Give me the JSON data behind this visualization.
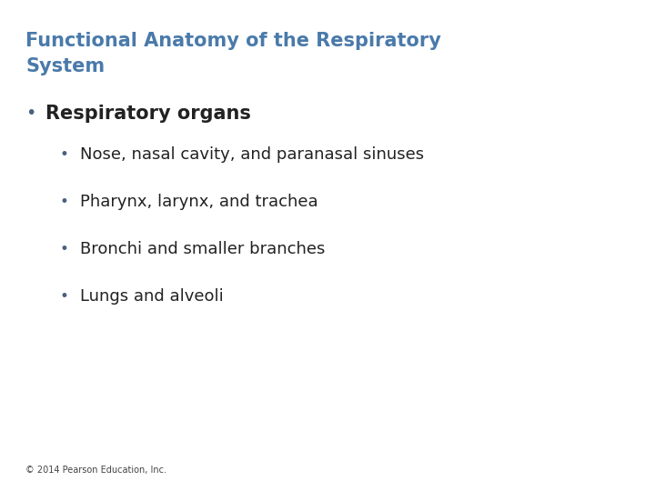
{
  "background_color": "#ffffff",
  "title_line1": "Functional Anatomy of the Respiratory",
  "title_line2": "System",
  "title_color": "#4a7aaa",
  "title_fontsize": 15,
  "title_fontweight": "bold",
  "level1_bullet": "•",
  "level1_text": "Respiratory organs",
  "level1_color": "#222222",
  "level1_fontsize": 15,
  "level1_fontweight": "bold",
  "level1_bullet_color": "#4a6080",
  "level2_items": [
    "Nose, nasal cavity, and paranasal sinuses",
    "Pharynx, larynx, and trachea",
    "Bronchi and smaller branches",
    "Lungs and alveoli"
  ],
  "level2_color": "#222222",
  "level2_fontsize": 13,
  "level2_fontweight": "normal",
  "level2_bullet_color": "#4a6080",
  "footer_text": "© 2014 Pearson Education, Inc.",
  "footer_color": "#444444",
  "footer_fontsize": 7
}
